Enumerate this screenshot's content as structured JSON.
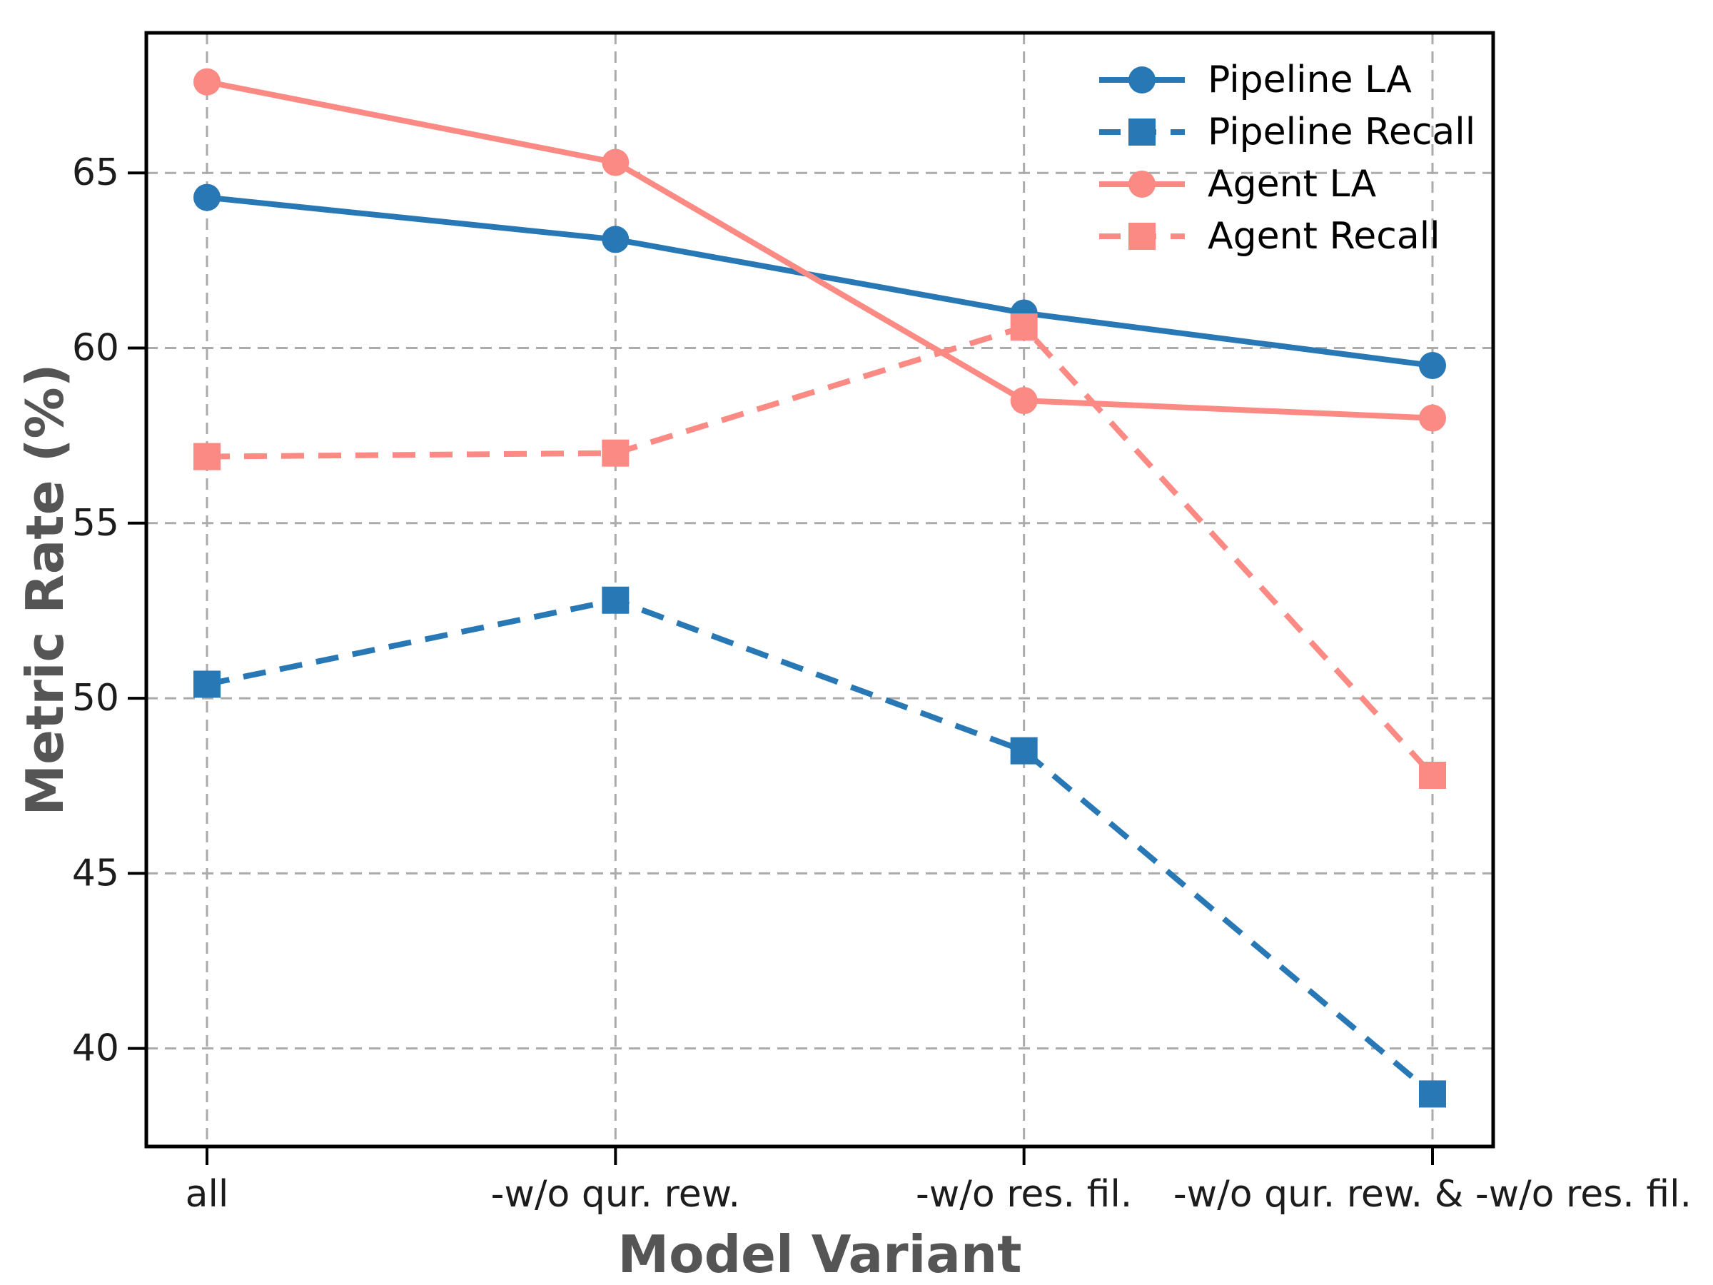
{
  "chart_data": {
    "type": "line",
    "title": "",
    "xlabel": "Model Variant",
    "ylabel": "Metric Rate (%)",
    "categories": [
      "all",
      "-w/o qur. rew.",
      "-w/o res. fil.",
      "-w/o qur. rew. & -w/o res. fil."
    ],
    "yticks": [
      40,
      45,
      50,
      55,
      60,
      65
    ],
    "ylim": [
      37.2,
      69.0
    ],
    "grid": true,
    "legend_position": "upper right",
    "series": [
      {
        "name": "Pipeline LA",
        "color": "#2878B5",
        "line_style": "solid",
        "marker": "circle",
        "values": [
          64.3,
          63.1,
          61.0,
          59.5
        ]
      },
      {
        "name": "Pipeline Recall",
        "color": "#2878B5",
        "line_style": "dashed",
        "marker": "square",
        "values": [
          50.4,
          52.8,
          48.5,
          38.7
        ]
      },
      {
        "name": "Agent LA",
        "color": "#FA8A83",
        "line_style": "solid",
        "marker": "circle",
        "values": [
          67.6,
          65.3,
          58.5,
          58.0
        ]
      },
      {
        "name": "Agent Recall",
        "color": "#FA8A83",
        "line_style": "dashed",
        "marker": "square",
        "values": [
          56.9,
          57.0,
          60.6,
          47.8
        ]
      }
    ],
    "colors": {
      "axis_frame": "#000000",
      "grid": "#ABABAB",
      "axis_title": "#555555",
      "tick_label": "#1C1C1C",
      "background": "#FFFFFF"
    }
  }
}
